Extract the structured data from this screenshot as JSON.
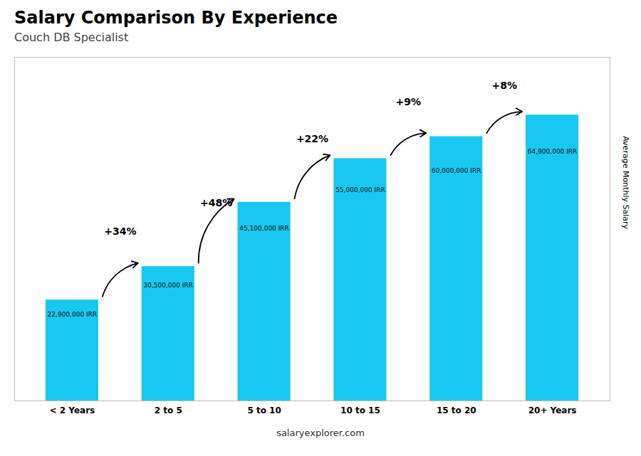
{
  "chart_data": {
    "type": "bar",
    "title": "Salary Comparison By Experience",
    "subtitle": "Couch DB Specialist",
    "ylabel": "Average Monthly Salary",
    "categories": [
      "< 2 Years",
      "2 to 5",
      "5 to 10",
      "10 to 15",
      "15 to 20",
      "20+ Years"
    ],
    "values": [
      22900000,
      30500000,
      45100000,
      55000000,
      60000000,
      64900000
    ],
    "value_labels": [
      "22,900,000 IRR",
      "30,500,000 IRR",
      "45,100,000 IRR",
      "55,000,000 IRR",
      "60,000,000 IRR",
      "64,900,000 IRR"
    ],
    "data_labels": true,
    "annotations": [
      "+34%",
      "+48%",
      "+22%",
      "+9%",
      "+8%"
    ],
    "watermark": "salaryexplorer.com",
    "color": "#18c8f0",
    "ylim": [
      0,
      78000000
    ],
    "grid": false,
    "tick_labels": "x"
  }
}
